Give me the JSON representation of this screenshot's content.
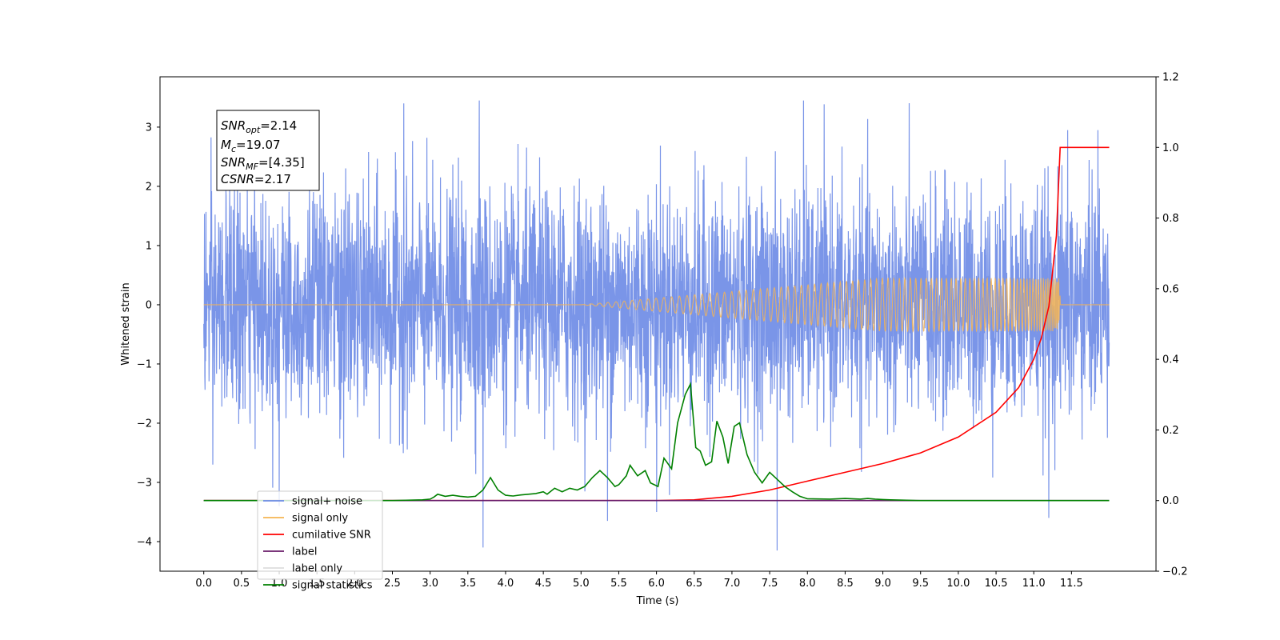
{
  "chart_data": {
    "type": "line",
    "xlabel": "Time (s)",
    "ylabel": "Whitened strain",
    "xlim": [
      -0.58,
      12.62
    ],
    "ylim": [
      -4.5,
      3.85
    ],
    "y2lim": [
      -0.2,
      1.2
    ],
    "x_ticks": [
      0.0,
      0.5,
      1.0,
      1.5,
      2.0,
      2.5,
      3.0,
      3.5,
      4.0,
      4.5,
      5.0,
      5.5,
      6.0,
      6.5,
      7.0,
      7.5,
      8.0,
      8.5,
      9.0,
      9.5,
      10.0,
      10.5,
      11.0,
      11.5
    ],
    "x_tick_labels": [
      "0.0",
      "0.5",
      "1.0",
      "1.5",
      "2.0",
      "2.5",
      "3.0",
      "3.5",
      "4.0",
      "4.5",
      "5.0",
      "5.5",
      "6.0",
      "6.5",
      "7.0",
      "7.5",
      "8.0",
      "8.5",
      "9.0",
      "9.5",
      "10.0",
      "10.5",
      "11.0",
      "11.5"
    ],
    "y_ticks": [
      -4,
      -3,
      -2,
      -1,
      0,
      1,
      2,
      3
    ],
    "y_tick_labels": [
      "−4",
      "−3",
      "−2",
      "−1",
      "0",
      "1",
      "2",
      "3"
    ],
    "y2_ticks": [
      -0.2,
      0.0,
      0.2,
      0.4,
      0.6,
      0.8,
      1.0,
      1.2
    ],
    "y2_tick_labels": [
      "−0.2",
      "0.0",
      "0.2",
      "0.4",
      "0.6",
      "0.8",
      "1.0",
      "1.2"
    ],
    "grid": false,
    "legend_position": "bottom-left",
    "series": [
      {
        "name": "signal+ noise",
        "axis": "left",
        "color": "#6b8ae6",
        "kind": "noise",
        "x_range": [
          0.0,
          12.0
        ],
        "typical_amplitude": 1.7,
        "max": 3.45,
        "min": -4.1,
        "spikes": [
          [
            1.0,
            -3.4
          ],
          [
            2.65,
            3.4
          ],
          [
            3.7,
            -4.1
          ],
          [
            3.65,
            3.45
          ],
          [
            5.35,
            -3.65
          ],
          [
            6.0,
            -3.5
          ],
          [
            7.6,
            -4.15
          ],
          [
            7.95,
            3.45
          ],
          [
            11.2,
            -3.6
          ],
          [
            11.85,
            2.95
          ],
          [
            11.45,
            2.95
          ],
          [
            0.12,
            -2.7
          ]
        ]
      },
      {
        "name": "signal only",
        "axis": "left",
        "color": "#f5b453",
        "kind": "chirp",
        "x_range": [
          0.0,
          12.0
        ],
        "merger_time": 11.35,
        "peak_amplitude": 0.45
      },
      {
        "name": "cumilative SNR",
        "axis": "right",
        "color": "#ff0000",
        "x": [
          0.0,
          6.0,
          6.5,
          7.0,
          7.5,
          8.0,
          8.5,
          9.0,
          9.5,
          10.0,
          10.5,
          10.8,
          11.0,
          11.1,
          11.2,
          11.3,
          11.33,
          11.35,
          12.0
        ],
        "y": [
          0.0,
          0.0,
          0.002,
          0.012,
          0.03,
          0.055,
          0.08,
          0.105,
          0.135,
          0.18,
          0.25,
          0.32,
          0.4,
          0.46,
          0.55,
          0.75,
          0.9,
          1.0,
          1.0
        ]
      },
      {
        "name": "label",
        "axis": "right",
        "color": "#6a1b6a",
        "x": [
          0.0,
          12.0
        ],
        "y": [
          0.0,
          0.0
        ]
      },
      {
        "name": "label only",
        "axis": "right",
        "color": "#dddddd",
        "x": [],
        "y": []
      },
      {
        "name": "signal statistics",
        "axis": "right",
        "color": "#008000",
        "x": [
          0.0,
          2.5,
          2.9,
          3.0,
          3.05,
          3.1,
          3.2,
          3.3,
          3.4,
          3.5,
          3.6,
          3.7,
          3.8,
          3.9,
          4.0,
          4.1,
          4.2,
          4.3,
          4.4,
          4.5,
          4.55,
          4.65,
          4.75,
          4.85,
          4.95,
          5.05,
          5.15,
          5.25,
          5.35,
          5.45,
          5.5,
          5.6,
          5.65,
          5.75,
          5.85,
          5.92,
          6.02,
          6.1,
          6.2,
          6.28,
          6.38,
          6.45,
          6.52,
          6.58,
          6.65,
          6.73,
          6.8,
          6.88,
          6.95,
          7.03,
          7.1,
          7.2,
          7.3,
          7.4,
          7.5,
          7.6,
          7.7,
          7.8,
          7.9,
          8.0,
          8.3,
          8.5,
          8.7,
          8.8,
          8.9,
          9.0,
          9.1,
          9.5,
          12.0
        ],
        "y": [
          0.0,
          0.0,
          0.002,
          0.004,
          0.01,
          0.018,
          0.012,
          0.015,
          0.012,
          0.01,
          0.012,
          0.03,
          0.065,
          0.03,
          0.015,
          0.013,
          0.016,
          0.018,
          0.02,
          0.025,
          0.018,
          0.035,
          0.025,
          0.035,
          0.03,
          0.04,
          0.065,
          0.085,
          0.065,
          0.04,
          0.045,
          0.07,
          0.1,
          0.07,
          0.085,
          0.05,
          0.04,
          0.12,
          0.09,
          0.22,
          0.3,
          0.33,
          0.15,
          0.14,
          0.1,
          0.11,
          0.225,
          0.18,
          0.105,
          0.21,
          0.22,
          0.13,
          0.08,
          0.05,
          0.08,
          0.06,
          0.04,
          0.025,
          0.012,
          0.005,
          0.004,
          0.006,
          0.004,
          0.006,
          0.004,
          0.003,
          0.002,
          0.0,
          0.0
        ]
      }
    ]
  },
  "annotation": {
    "line1_sym": "SNR",
    "line1_sub": "opt",
    "line1_val": "=2.14",
    "line2_sym": "M",
    "line2_sub": "c",
    "line2_val": "=19.07",
    "line3_sym": "SNR",
    "line3_sub": "MF",
    "line3_val": "=[4.35]",
    "line4_sym": "CSNR",
    "line4_val": "=2.17"
  }
}
